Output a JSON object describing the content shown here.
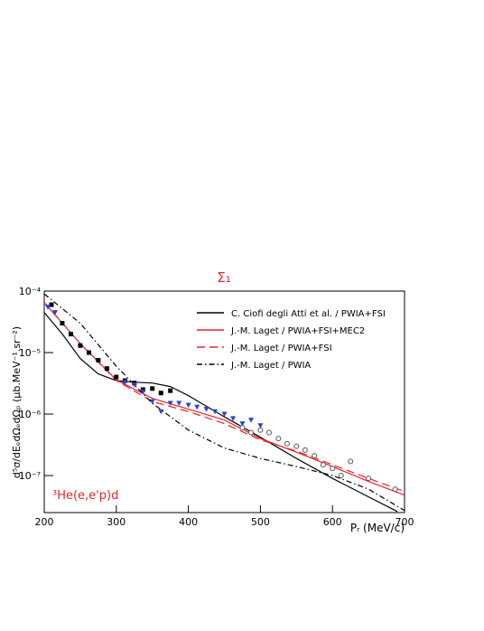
{
  "chart_data": {
    "type": "line",
    "title": "Σ₁",
    "title_color": "#e8242a",
    "x_label": "Pᵣ  (MeV/c)",
    "y_label": "d⁵σ/dEₑdΩₑdΩₚ  (μb.MeV⁻¹.sr⁻²)",
    "annotation": "³He(e,e'p)d",
    "annotation_color": "#e8242a",
    "log_y": true,
    "legend": "upper right",
    "xlim": [
      200,
      700
    ],
    "xticks": [
      200,
      300,
      400,
      500,
      600,
      700
    ],
    "ylim": [
      2.5e-08,
      0.0001
    ],
    "yticks": [
      {
        "value": 0.0001,
        "label": "10⁻⁴"
      },
      {
        "value": 1e-05,
        "label": "10⁻⁵"
      },
      {
        "value": 1e-06,
        "label": "10⁻⁶"
      },
      {
        "value": 1e-07,
        "label": "10⁻⁷"
      }
    ],
    "series": [
      {
        "name": "C. Ciofi degli Atti et al. / PWIA+FSI",
        "color": "#000000",
        "style": "solid",
        "x": [
          200,
          225,
          250,
          275,
          300,
          325,
          350,
          375,
          400,
          450,
          500,
          550,
          600,
          650,
          690
        ],
        "values": [
          4.5e-05,
          2e-05,
          8e-06,
          4.5e-06,
          3.5e-06,
          3.3e-06,
          3.2e-06,
          2.8e-06,
          2e-06,
          9e-07,
          4.2e-07,
          1.9e-07,
          9e-08,
          4.5e-08,
          2.6e-08
        ]
      },
      {
        "name": "J.-M. Laget / PWIA+FSI+MEC2",
        "color": "#e8242a",
        "style": "solid",
        "x": [
          200,
          250,
          300,
          350,
          400,
          450,
          500,
          550,
          600,
          650,
          700
        ],
        "values": [
          6.5e-05,
          1.4e-05,
          3.6e-06,
          1.8e-06,
          1.2e-06,
          8e-07,
          4e-07,
          2.4e-07,
          1.4e-07,
          8e-08,
          4.8e-08
        ]
      },
      {
        "name": "J.-M. Laget / PWIA+FSI",
        "color": "#e8242a",
        "style": "dashed",
        "x": [
          200,
          250,
          300,
          350,
          400,
          450,
          500,
          550,
          600,
          650,
          700
        ],
        "values": [
          6.5e-05,
          1.4e-05,
          3.5e-06,
          1.6e-06,
          1.1e-06,
          7e-07,
          3.8e-07,
          2.5e-07,
          1.5e-07,
          9e-08,
          5.5e-08
        ]
      },
      {
        "name": "J.-M. Laget / PWIA",
        "color": "#000000",
        "style": "dashdot",
        "x": [
          200,
          250,
          300,
          350,
          400,
          450,
          500,
          550,
          600,
          650,
          700
        ],
        "values": [
          9e-05,
          3e-05,
          6e-06,
          1.5e-06,
          5.5e-07,
          2.8e-07,
          1.9e-07,
          1.4e-07,
          1e-07,
          6e-08,
          2.7e-08
        ]
      }
    ],
    "data_sets": [
      {
        "marker": "square",
        "color": "#000000",
        "x": [
          210,
          225,
          237,
          250,
          262,
          275,
          287,
          300,
          312,
          325,
          337,
          350,
          362,
          375
        ],
        "values": [
          6e-05,
          3e-05,
          2e-05,
          1.3e-05,
          1e-05,
          7.5e-06,
          5.5e-06,
          4e-06,
          3.5e-06,
          3.2e-06,
          2.5e-06,
          2.6e-06,
          2.2e-06,
          2.4e-06
        ]
      },
      {
        "marker": "triangle_down",
        "color": "#2a3fd6",
        "x": [
          205,
          215,
          312,
          325,
          337,
          350,
          362,
          375,
          387,
          400,
          412,
          425,
          437,
          450,
          462,
          475,
          487,
          500
        ],
        "values": [
          5.5e-05,
          4.5e-05,
          3.3e-06,
          3e-06,
          2.3e-06,
          1.6e-06,
          1.1e-06,
          1.5e-06,
          1.5e-06,
          1.4e-06,
          1.3e-06,
          1.2e-06,
          1.1e-06,
          1e-06,
          8.5e-07,
          7e-07,
          8e-07,
          6.5e-07
        ]
      },
      {
        "marker": "circle_open",
        "color": "#555555",
        "x": [
          475,
          487,
          500,
          512,
          525,
          537,
          550,
          562,
          575,
          587,
          600,
          612,
          625,
          650,
          687
        ],
        "values": [
          6e-07,
          5e-07,
          5.5e-07,
          5e-07,
          4e-07,
          3.3e-07,
          3e-07,
          2.6e-07,
          2.1e-07,
          1.5e-07,
          1.3e-07,
          1e-07,
          1.7e-07,
          9e-08,
          6e-08
        ]
      }
    ]
  }
}
